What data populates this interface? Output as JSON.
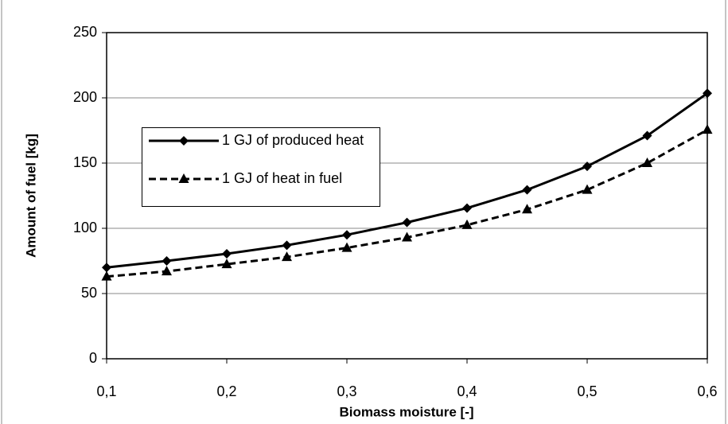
{
  "chart_data": {
    "type": "line",
    "x_label": "Biomass moisture [-]",
    "y_label": "Amount of fuel [kg]",
    "x": [
      0.1,
      0.15,
      0.2,
      0.25,
      0.3,
      0.35,
      0.4,
      0.45,
      0.5,
      0.55,
      0.6
    ],
    "series": [
      {
        "name": "1 GJ of produced heat",
        "color": "#000000",
        "dash": "solid",
        "marker": "diamond",
        "values": [
          70,
          75,
          80.5,
          87,
          95,
          104.5,
          115.5,
          129.5,
          147.5,
          171,
          203.5
        ]
      },
      {
        "name": "1 GJ of heat in fuel",
        "color": "#000000",
        "dash": "dashed",
        "marker": "triangle",
        "values": [
          63,
          67,
          72.5,
          78,
          85,
          93,
          102.5,
          114.5,
          129.5,
          150,
          175.5
        ]
      }
    ],
    "xlim": [
      0.1,
      0.6
    ],
    "xticks": [
      {
        "value": 0.1,
        "label": "0,1"
      },
      {
        "value": 0.2,
        "label": "0,2"
      },
      {
        "value": 0.3,
        "label": "0,3"
      },
      {
        "value": 0.4,
        "label": "0,4"
      },
      {
        "value": 0.5,
        "label": "0,5"
      },
      {
        "value": 0.6,
        "label": "0,6"
      }
    ],
    "ylim": [
      0,
      250
    ],
    "yticks": [
      0,
      50,
      100,
      150,
      200,
      250
    ],
    "grid": true,
    "legend": "upper left"
  }
}
